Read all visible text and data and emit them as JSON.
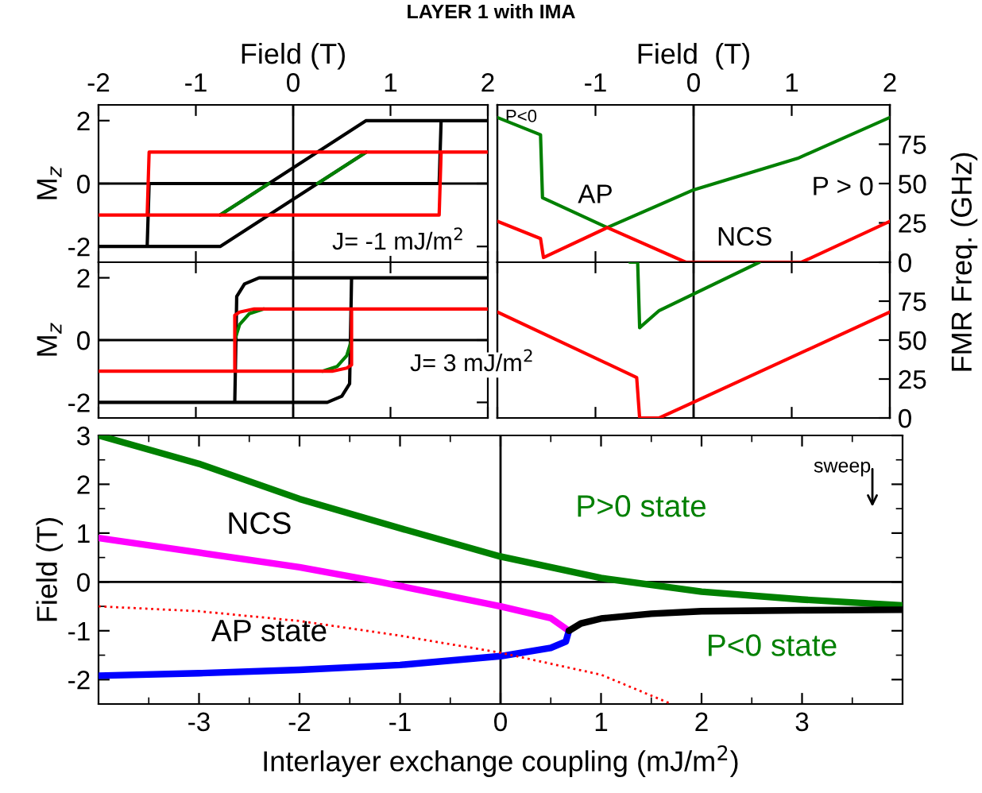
{
  "chart_data": [
    {
      "type": "line",
      "title": "LAYER 1 with IMA",
      "xlabel": "Field (T)",
      "ylabel": "M$_{z}$",
      "xlim": [
        -2,
        2
      ],
      "xticks": [
        -2,
        -1,
        0,
        1,
        2
      ],
      "ylim": [
        -2.5,
        2.5
      ],
      "yticks": [
        -2,
        0,
        2
      ],
      "ref_lines": [
        {
          "axis": "y",
          "value": 0
        },
        {
          "axis": "x",
          "value": 0
        }
      ],
      "annotations": [
        "J= -1 mJ/m$^{2}$"
      ],
      "series": [
        {
          "color": "#000000",
          "x": [
            -2,
            -1.5,
            -1.48,
            1.5,
            1.52,
            2,
            null,
            -2,
            -0.75,
            0.75,
            null,
            -0.75,
            0.75,
            2
          ],
          "values": [
            -2,
            -2,
            0,
            0,
            2,
            2,
            null,
            -2,
            -2,
            1,
            null,
            -1,
            2,
            2
          ]
        },
        {
          "color": "#008000",
          "x": [
            -0.75,
            -0.25,
            null,
            0.25,
            0.75
          ],
          "values": [
            -1,
            0,
            null,
            0,
            1
          ]
        },
        {
          "color": "#ff0000",
          "x": [
            -2,
            1.5,
            1.52,
            2,
            null,
            -2,
            -1.5,
            -1.48,
            2
          ],
          "values": [
            -1,
            -1,
            1,
            1,
            null,
            -1,
            -1,
            1,
            1
          ]
        }
      ]
    },
    {
      "type": "line",
      "xlabel": "Field  (T)",
      "xlim": [
        -2,
        2
      ],
      "xticks": [
        {
          "value": -2,
          "label": null
        },
        -1,
        0,
        1,
        2
      ],
      "y2lim": [
        0,
        100
      ],
      "y2ticks": [
        0,
        25,
        50,
        75
      ],
      "y2label": "FMR Freq. (GHz)",
      "ref_lines": [
        {
          "axis": "x",
          "value": 0
        }
      ],
      "annotations": [
        "P<0",
        "AP",
        "P > 0",
        "NCS"
      ],
      "series": [
        {
          "axis": "y2",
          "color": "#008000",
          "x": [
            -2,
            -1.56,
            -1.54,
            -0.88,
            0,
            1.06,
            2
          ],
          "values": [
            92,
            81,
            41,
            22,
            46,
            66,
            92
          ]
        },
        {
          "axis": "y2",
          "color": "#ff0000",
          "x": [
            -2,
            -1.56,
            -1.53,
            -0.88,
            -0.08,
            1.1,
            2
          ],
          "values": [
            26,
            15,
            3,
            22,
            0,
            0,
            26
          ]
        }
      ]
    },
    {
      "type": "line",
      "ylabel": "M$_{z}$",
      "xlim": [
        -2,
        2
      ],
      "xticks": [
        -2,
        -1,
        0,
        1,
        2
      ],
      "ylim": [
        -2.5,
        2.5
      ],
      "yticks": [
        -2,
        0,
        2
      ],
      "tick_labels": "y",
      "ref_lines": [
        {
          "axis": "y",
          "value": 0
        },
        {
          "axis": "x",
          "value": 0
        }
      ],
      "annotations": [
        "J= 3 mJ/m$^{2}$"
      ],
      "series": [
        {
          "color": "#000000",
          "x": [
            2,
            -0.35,
            -0.5,
            -0.58,
            -0.6,
            -2,
            null,
            -2,
            0.35,
            0.5,
            0.58,
            0.6,
            2
          ],
          "values": [
            2,
            2,
            1.8,
            1.4,
            -2,
            -2,
            null,
            -2,
            -2,
            -1.8,
            -1.4,
            2,
            2
          ]
        },
        {
          "color": "#008000",
          "x": [
            -0.6,
            -0.55,
            -0.45,
            -0.3,
            null,
            0.3,
            0.45,
            0.55,
            0.6
          ],
          "values": [
            0,
            0.5,
            0.85,
            1,
            null,
            -1,
            -0.85,
            -0.5,
            0
          ]
        },
        {
          "color": "#ff0000",
          "x": [
            2,
            -0.4,
            -0.55,
            -0.6,
            -0.6,
            -2,
            null,
            -2,
            0.4,
            0.55,
            0.6,
            0.6,
            2
          ],
          "values": [
            1,
            1,
            0.9,
            0.8,
            -1,
            -1,
            null,
            -1,
            -1,
            -0.9,
            -0.8,
            1,
            1
          ]
        }
      ]
    },
    {
      "type": "line",
      "xlim": [
        -2,
        2
      ],
      "xticks": [
        -2,
        -1,
        0,
        1,
        2
      ],
      "y2lim": [
        0,
        100
      ],
      "y2ticks": [
        0,
        25,
        50,
        75
      ],
      "tick_labels": "y",
      "ref_lines": [
        {
          "axis": "x",
          "value": 0
        }
      ],
      "series": [
        {
          "axis": "y2",
          "color": "#008000",
          "x": [
            -0.65,
            -0.57,
            -0.55,
            -0.35,
            0.67
          ],
          "values": [
            100,
            100,
            58,
            69,
            100
          ]
        },
        {
          "axis": "y2",
          "color": "#ff0000",
          "x": [
            -2,
            -0.58,
            -0.55,
            -0.35,
            2
          ],
          "values": [
            68,
            26,
            0,
            0,
            68
          ]
        }
      ]
    },
    {
      "type": "line",
      "xlabel": "Interlayer exchange coupling (mJ/m$^{2}$)",
      "ylabel": "Field (T)",
      "xlim": [
        -4,
        4
      ],
      "xticks": [
        -3,
        -2,
        -1,
        0,
        1,
        2,
        3
      ],
      "ylim": [
        -2.5,
        3
      ],
      "yticks": [
        -2,
        -1,
        0,
        1,
        2,
        3
      ],
      "ref_lines": [
        {
          "axis": "y",
          "value": 0
        },
        {
          "axis": "x",
          "value": 0
        }
      ],
      "annotations": [
        "NCS",
        "AP state",
        "P>0 state",
        "P<0 state",
        "sweep"
      ],
      "series": [
        {
          "color": "#008000",
          "x": [
            -4,
            -3,
            -2,
            -1,
            0,
            1,
            2,
            3,
            4
          ],
          "values": [
            3,
            2.42,
            1.7,
            1.1,
            0.52,
            0.08,
            -0.2,
            -0.36,
            -0.48
          ]
        },
        {
          "color": "#ff00ff",
          "x": [
            -4,
            -3,
            -2,
            -1.2,
            0,
            0.5,
            0.68
          ],
          "values": [
            0.9,
            0.6,
            0.3,
            0,
            -0.5,
            -0.74,
            -1.0
          ]
        },
        {
          "color": "#0000ff",
          "x": [
            -4,
            -3,
            -2,
            -1,
            0,
            0.5,
            0.65,
            0.68
          ],
          "values": [
            -1.92,
            -1.87,
            -1.8,
            -1.7,
            -1.52,
            -1.35,
            -1.22,
            -1.0
          ]
        },
        {
          "color": "#000000",
          "x": [
            0.68,
            0.8,
            1,
            1.5,
            2,
            3,
            4
          ],
          "values": [
            -1.0,
            -0.85,
            -0.75,
            -0.65,
            -0.6,
            -0.58,
            -0.57
          ]
        },
        {
          "color": "#ff0000",
          "line_style": "dotted",
          "x": [
            -4,
            -3,
            -2,
            -1,
            0,
            1,
            1.7
          ],
          "values": [
            -0.5,
            -0.6,
            -0.8,
            -1.1,
            -1.45,
            -1.9,
            -2.5
          ]
        }
      ]
    }
  ]
}
